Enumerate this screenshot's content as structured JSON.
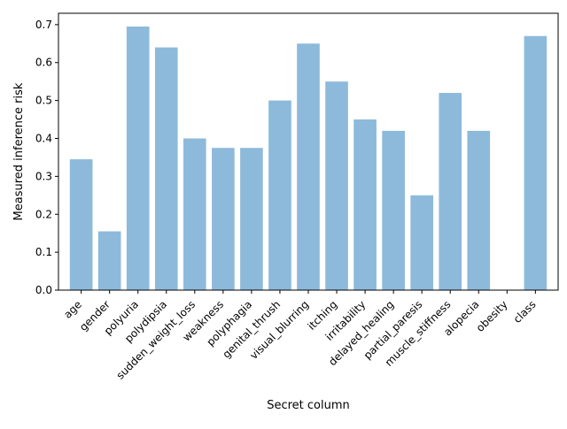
{
  "chart_data": {
    "type": "bar",
    "xlabel": "Secret column",
    "ylabel": "Measured inference risk",
    "ylim": [
      0,
      0.73
    ],
    "yticks": [
      "0.0",
      "0.1",
      "0.2",
      "0.3",
      "0.4",
      "0.5",
      "0.6",
      "0.7"
    ],
    "categories": [
      "age",
      "gender",
      "polyuria",
      "polydipsia",
      "sudden_weight_loss",
      "weakness",
      "polyphagia",
      "genital_thrush",
      "visual_blurring",
      "itching",
      "irritability",
      "delayed_healing",
      "partial_paresis",
      "muscle_stiffness",
      "alopecia",
      "obesity",
      "class"
    ],
    "values": [
      0.345,
      0.155,
      0.695,
      0.64,
      0.4,
      0.375,
      0.375,
      0.5,
      0.65,
      0.55,
      0.45,
      0.42,
      0.25,
      0.52,
      0.42,
      0.0,
      0.67
    ],
    "bar_color": "#8dbadb",
    "grid": false
  }
}
